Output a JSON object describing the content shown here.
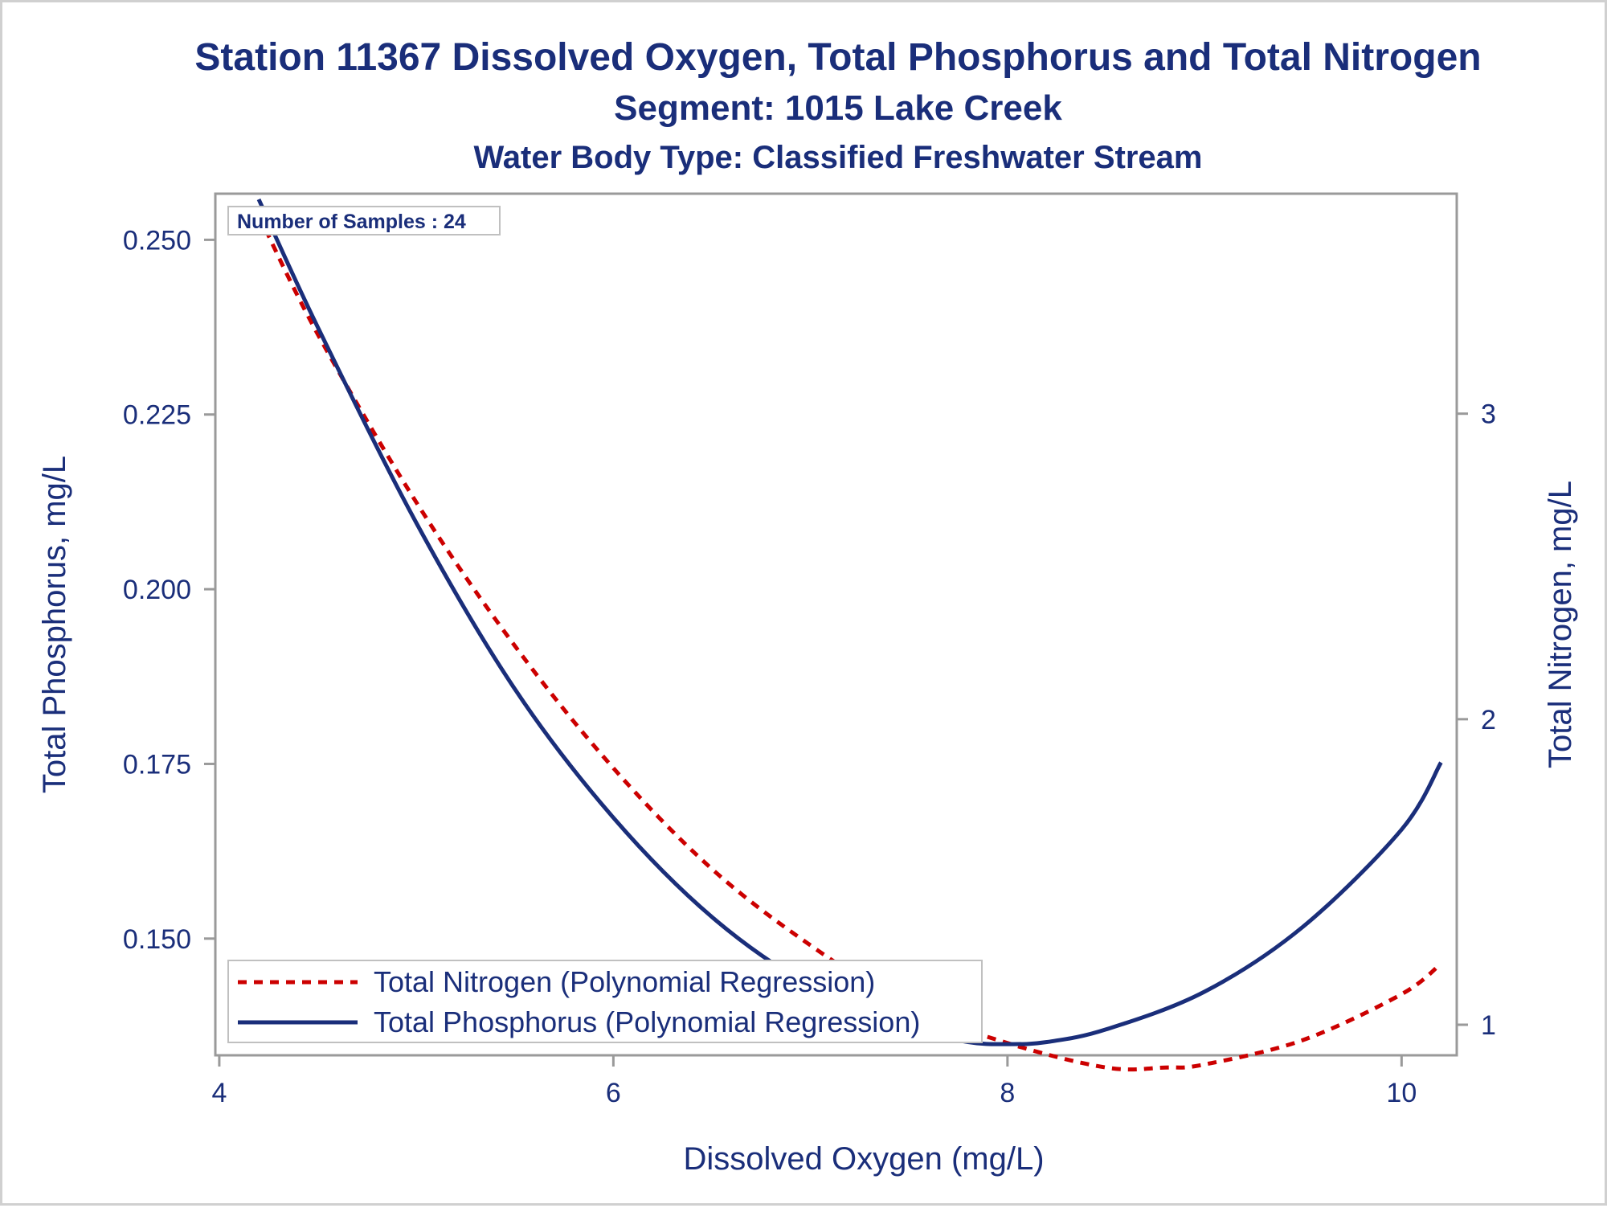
{
  "chart_data": {
    "type": "line",
    "title": "Station 11367  Dissolved Oxygen, Total Phosphorus and Total Nitrogen",
    "subtitle": "Segment: 1015  Lake Creek",
    "subtitle2": "Water Body Type: Classified Freshwater Stream",
    "xlabel": "Dissolved Oxygen (mg/L)",
    "ylabel": "Total Phosphorus, mg/L",
    "y2label": "Total Nitrogen, mg/L",
    "annotation": "Number of Samples : 24",
    "xlim": [
      3.98,
      10.28
    ],
    "ylim": [
      0.1333,
      0.2566
    ],
    "y2lim": [
      0.9,
      3.72
    ],
    "xticks": [
      "4",
      "6",
      "8",
      "10"
    ],
    "xtick_values": [
      4,
      6,
      8,
      10
    ],
    "yticks": [
      "0.150",
      "0.175",
      "0.200",
      "0.225",
      "0.250"
    ],
    "ytick_values": [
      0.15,
      0.175,
      0.2,
      0.225,
      0.25
    ],
    "y2ticks": [
      "1",
      "2",
      "3"
    ],
    "y2tick_values": [
      1,
      2,
      3
    ],
    "grid": false,
    "legend_position": "bottom-left",
    "series": [
      {
        "name": "Total Nitrogen (Polynomial Regression)",
        "axis": "y2",
        "color": "#cc0000",
        "style": "dashed",
        "x": [
          4.2,
          4.5,
          5.0,
          5.5,
          6.0,
          6.5,
          7.0,
          7.5,
          8.0,
          8.5,
          8.8,
          9.0,
          9.5,
          10.0,
          10.2
        ],
        "y": [
          3.65,
          3.26,
          2.71,
          2.24,
          1.84,
          1.51,
          1.26,
          1.06,
          0.94,
          0.86,
          0.86,
          0.87,
          0.95,
          1.1,
          1.2
        ]
      },
      {
        "name": "Total Phosphorus (Polynomial Regression)",
        "axis": "y",
        "color": "#1a2e7a",
        "style": "solid",
        "x": [
          4.2,
          4.5,
          5.0,
          5.5,
          6.0,
          6.5,
          7.0,
          7.5,
          7.8,
          8.0,
          8.2,
          8.5,
          9.0,
          9.5,
          10.0,
          10.2
        ],
        "y": [
          0.2558,
          0.2375,
          0.2095,
          0.1857,
          0.1673,
          0.1531,
          0.1432,
          0.1372,
          0.1352,
          0.1349,
          0.1352,
          0.137,
          0.1424,
          0.1517,
          0.1656,
          0.1752
        ]
      }
    ]
  }
}
